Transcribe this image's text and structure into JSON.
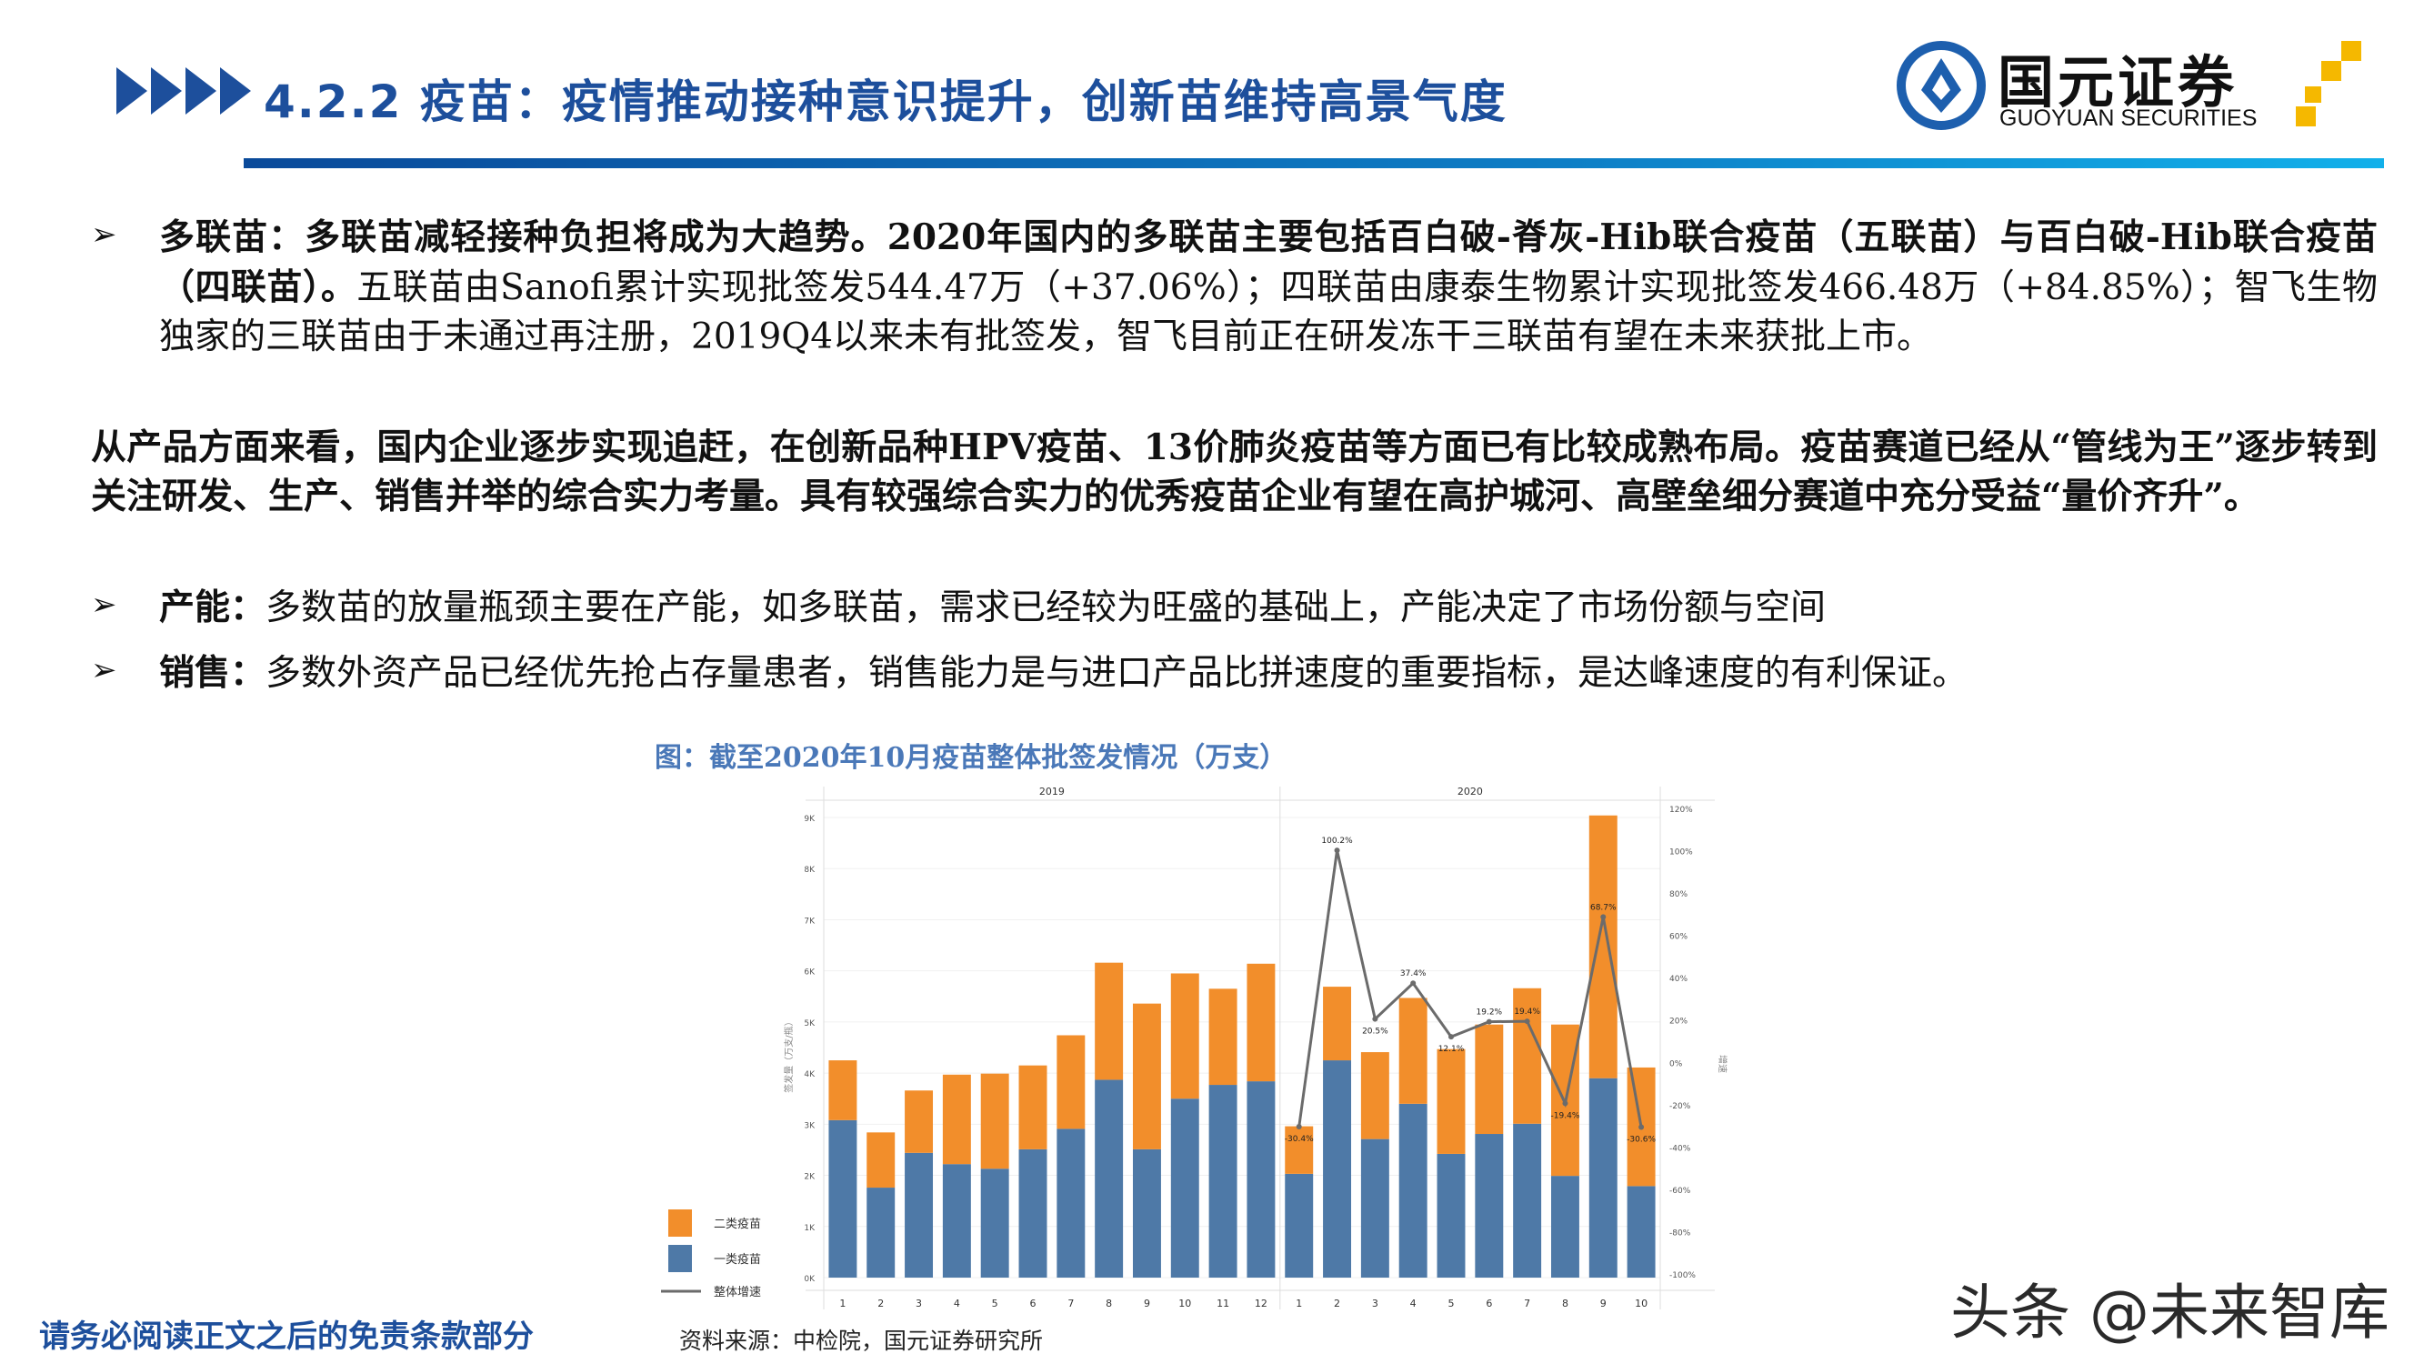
{
  "header": {
    "title": "4.2.2 疫苗：疫情推动接种意识提升，创新苗维持高景气度",
    "logo_cn": "国元证券",
    "logo_en": "GUOYUAN SECURITIES"
  },
  "content": {
    "bullet1_lead": "多联苗：多联苗减轻接种负担将成为大趋势。2020年国内的多联苗主要包括百白破-脊灰-Hib联合疫苗（五联苗）与百白破-Hib联合疫苗（四联苗）。",
    "bullet1_rest": "五联苗由Sanofi累计实现批签发544.47万（+37.06%）；四联苗由康泰生物累计实现批签发466.48万（+84.85%）；智飞生物独家的三联苗由于未通过再注册，2019Q4以来未有批签发，智飞目前正在研发冻干三联苗有望在未来获批上市。",
    "paragraph2": "从产品方面来看，国内企业逐步实现追赶，在创新品种HPV疫苗、13价肺炎疫苗等方面已有比较成熟布局。疫苗赛道已经从“管线为王”逐步转到关注研发、生产、销售并举的综合实力考量。具有较强综合实力的优秀疫苗企业有望在高护城河、高壁垒细分赛道中充分受益“量价齐升”。",
    "bullet3_lead": "产能：",
    "bullet3_rest": "多数苗的放量瓶颈主要在产能，如多联苗，需求已经较为旺盛的基础上，产能决定了市场份额与空间",
    "bullet4_lead": "销售：",
    "bullet4_rest": "多数外资产品已经优先抢占存量患者，销售能力是与进口产品比拼速度的重要指标，是达峰速度的有利保证。",
    "bullet_glyph": "➢"
  },
  "chart_caption": "图：截至2020年10月疫苗整体批签发情况（万支）",
  "source": "资料来源：中检院，国元证券研究所",
  "footer": "请务必阅读正文之后的免责条款部分",
  "watermark": "头条 @未来智库",
  "chart_data": {
    "type": "bar",
    "stacked": true,
    "groups": [
      {
        "label": "2019",
        "categories": [
          "1",
          "2",
          "3",
          "4",
          "5",
          "6",
          "7",
          "8",
          "9",
          "10",
          "11",
          "12"
        ]
      },
      {
        "label": "2020",
        "categories": [
          "1",
          "2",
          "3",
          "4",
          "5",
          "6",
          "7",
          "8",
          "9",
          "10"
        ]
      }
    ],
    "series": [
      {
        "name": "一类疫苗",
        "color": "#4e79a7",
        "values": [
          3.08,
          1.76,
          2.44,
          2.22,
          2.13,
          2.51,
          2.91,
          3.87,
          2.51,
          3.5,
          3.77,
          3.84,
          2.03,
          4.25,
          2.71,
          3.4,
          2.42,
          2.81,
          3.01,
          1.99,
          3.9,
          1.79
        ]
      },
      {
        "name": "二类疫苗",
        "color": "#f28e2b",
        "values": [
          1.17,
          1.08,
          1.22,
          1.75,
          1.86,
          1.64,
          1.83,
          2.29,
          2.85,
          2.45,
          1.88,
          2.3,
          0.93,
          1.44,
          1.7,
          2.07,
          2.05,
          2.14,
          2.65,
          2.96,
          5.14,
          2.32
        ]
      }
    ],
    "line": {
      "name": "整体增速",
      "color": "#6b6b6b",
      "values": [
        -30.4,
        100.2,
        20.5,
        37.4,
        12.1,
        19.2,
        19.4,
        -19.4,
        68.7,
        -30.6
      ],
      "labels": [
        "-30.4%",
        "100.2%",
        "20.5%",
        "37.4%",
        "12.1%",
        "19.2%",
        "19.4%",
        "-19.4%",
        "68.7%",
        "-30.6%"
      ]
    },
    "ylabel": "签发量（万支/瓶）",
    "y2label": "增速",
    "ylim": [
      0,
      9
    ],
    "yticks": [
      "0K",
      "1K",
      "2K",
      "3K",
      "4K",
      "5K",
      "6K",
      "7K",
      "8K",
      "9K"
    ],
    "y2lim": [
      -100,
      120
    ],
    "y2ticks": [
      "-100%",
      "-80%",
      "-60%",
      "-40%",
      "-20%",
      "0%",
      "20%",
      "40%",
      "60%",
      "80%",
      "100%",
      "120%"
    ],
    "units": "thousand 万支",
    "legend": "bottom-left",
    "grid": true
  }
}
